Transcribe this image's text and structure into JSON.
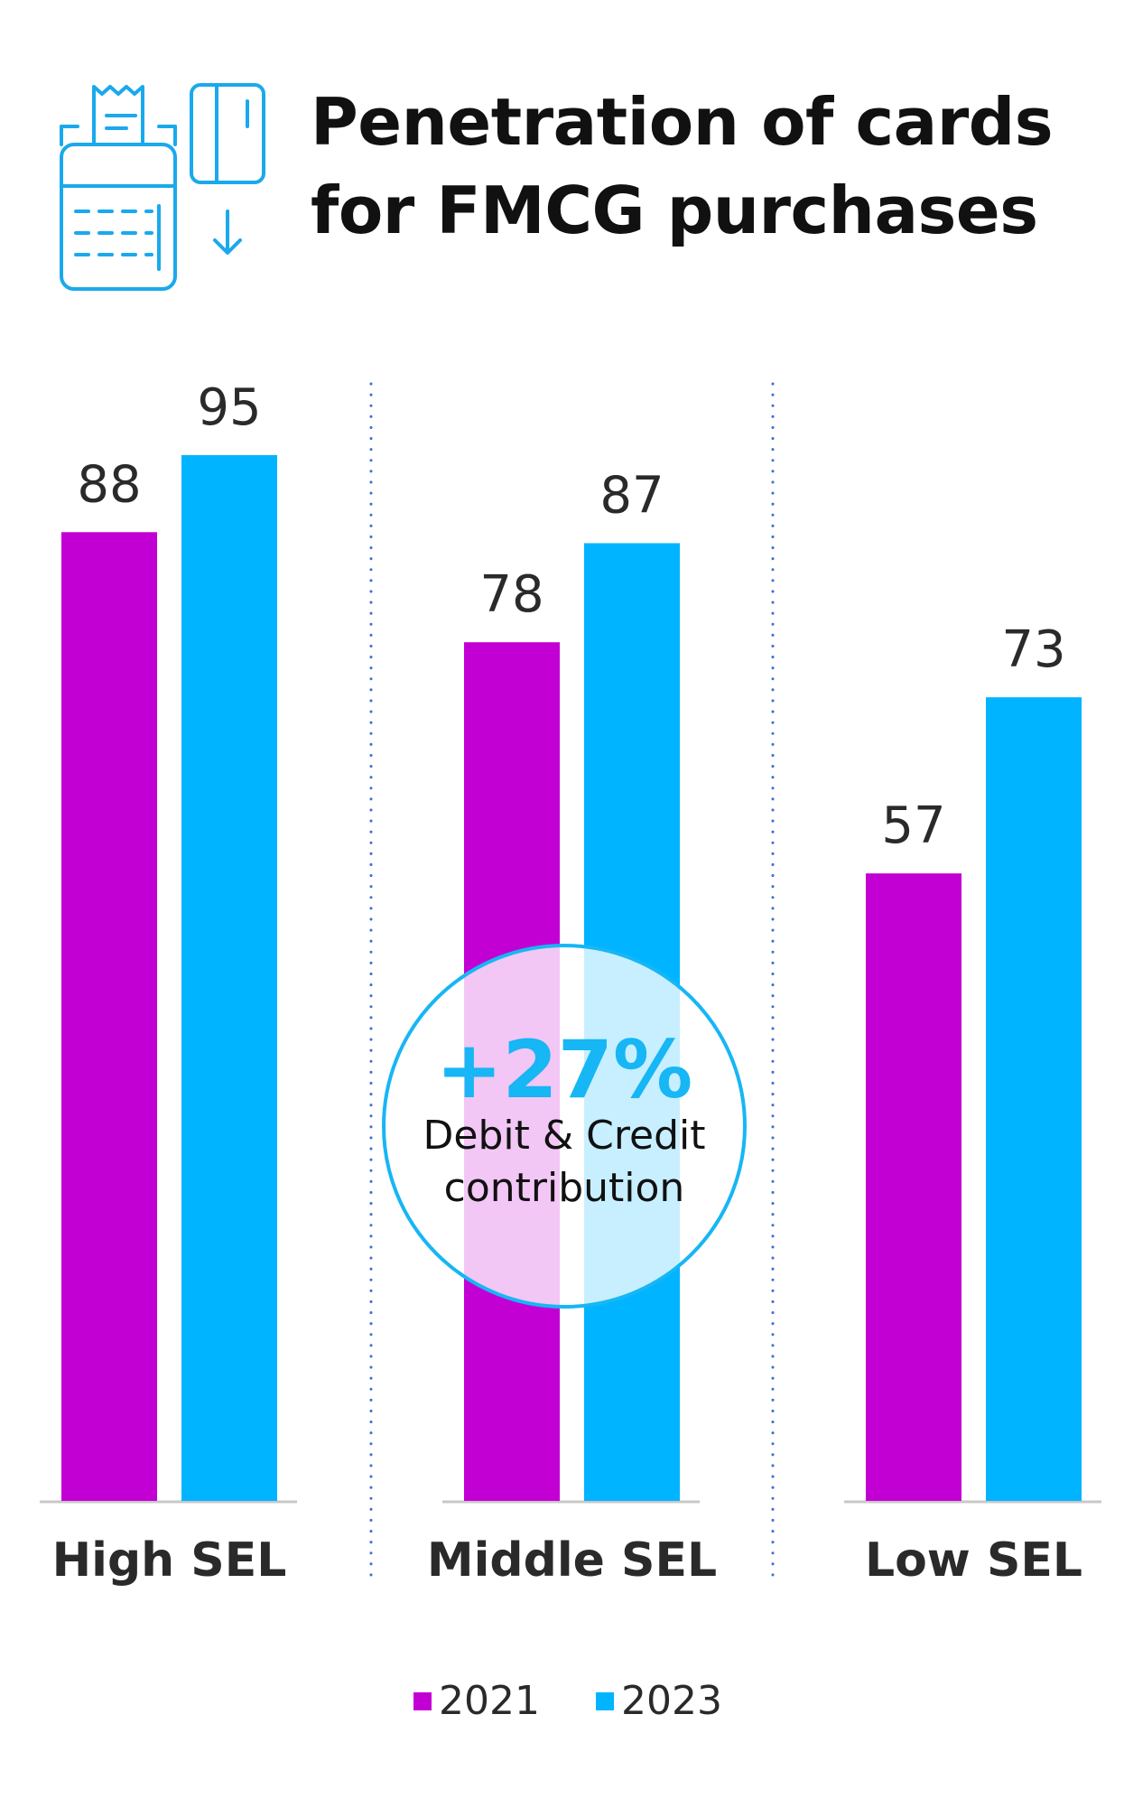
{
  "header": {
    "title_lines": [
      "Penetration of cards",
      "for FMCG purchases"
    ],
    "icon": "card-terminal-receipt-icon"
  },
  "chart_data": {
    "type": "bar",
    "categories": [
      "High SEL",
      "Middle SEL",
      "Low SEL"
    ],
    "series": [
      {
        "name": "2021",
        "values": [
          88,
          78,
          57
        ],
        "color": "#c300d3"
      },
      {
        "name": "2023",
        "values": [
          95,
          87,
          73
        ],
        "color": "#00b4ff"
      }
    ],
    "ylim": [
      0,
      100
    ],
    "grid": false,
    "legend": {
      "placement": "bottom-center"
    },
    "annotation": {
      "value": "+27%",
      "lines": [
        "Debit & Credit",
        "contribution"
      ],
      "accent": "#17b6f5"
    }
  }
}
